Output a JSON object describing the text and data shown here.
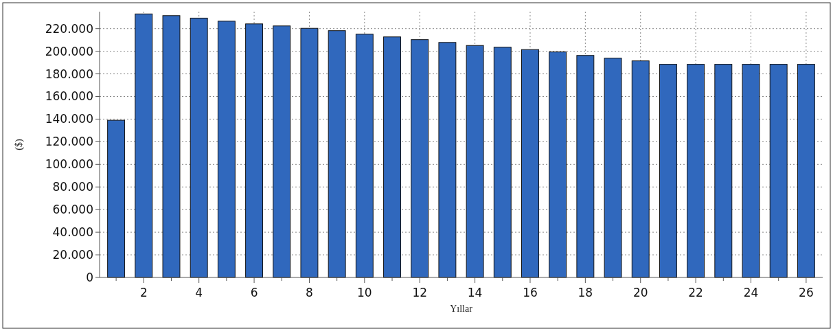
{
  "chart_data": {
    "type": "bar",
    "xlabel": "Yıllar",
    "ylabel": "($)",
    "x": [
      1,
      2,
      3,
      4,
      5,
      6,
      7,
      8,
      9,
      10,
      11,
      12,
      13,
      14,
      15,
      16,
      17,
      18,
      19,
      20,
      21,
      22,
      23,
      24,
      25,
      26
    ],
    "values": [
      139000,
      233000,
      231500,
      229300,
      226600,
      224200,
      222400,
      220300,
      218200,
      215100,
      212700,
      210300,
      207800,
      205100,
      203600,
      201500,
      199400,
      196300,
      193900,
      191500,
      188500,
      188500,
      188500,
      188500,
      188500,
      188500
    ],
    "color": "#3068bd",
    "xlim": [
      0.4,
      26.6
    ],
    "xticks": [
      {
        "value": 1,
        "label": null
      },
      2,
      {
        "value": 3,
        "label": null
      },
      4,
      {
        "value": 5,
        "label": null
      },
      6,
      {
        "value": 7,
        "label": null
      },
      8,
      {
        "value": 9,
        "label": null
      },
      10,
      {
        "value": 11,
        "label": null
      },
      12,
      {
        "value": 13,
        "label": null
      },
      14,
      {
        "value": 15,
        "label": null
      },
      16,
      {
        "value": 17,
        "label": null
      },
      18,
      {
        "value": 19,
        "label": null
      },
      20,
      {
        "value": 21,
        "label": null
      },
      22,
      {
        "value": 23,
        "label": null
      },
      24,
      {
        "value": 25,
        "label": null
      },
      26
    ],
    "ylim": [
      0,
      235000
    ],
    "yticks": [
      {
        "value": 0,
        "label": "0"
      },
      {
        "value": 20000,
        "label": "20.000"
      },
      {
        "value": 40000,
        "label": "40.000"
      },
      {
        "value": 60000,
        "label": "60.000"
      },
      {
        "value": 80000,
        "label": "80.000"
      },
      {
        "value": 100000,
        "label": "100.000"
      },
      {
        "value": 120000,
        "label": "120.000"
      },
      {
        "value": 140000,
        "label": "140.000"
      },
      {
        "value": 160000,
        "label": "160.000"
      },
      {
        "value": 180000,
        "label": "180.000"
      },
      {
        "value": 200000,
        "label": "200.000"
      },
      {
        "value": 220000,
        "label": "220.000"
      }
    ],
    "grid": true
  }
}
